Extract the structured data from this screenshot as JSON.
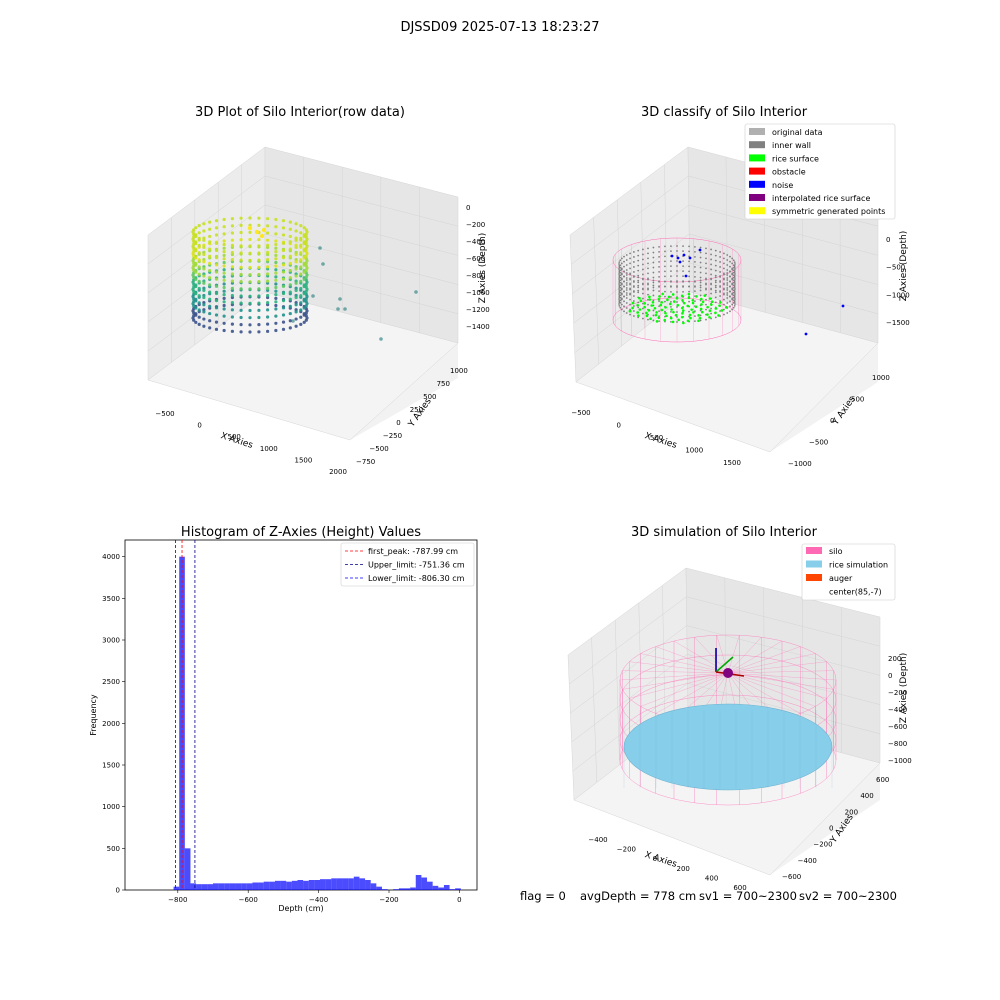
{
  "figure": {
    "suptitle": "DJSSD09 2025-07-13 18:23:27",
    "footer": {
      "flag": "flag = 0",
      "avg": "avgDepth = 778 cm",
      "sv1": "sv1 = 700~2300",
      "sv2": "sv2 = 700~2300"
    }
  },
  "chart_data": [
    {
      "type": "scatter",
      "title": "3D Plot of Silo Interior(row data)",
      "xlabel": "X Axies",
      "ylabel": "Y Axies",
      "zlabel": "Z Axies (Depth)",
      "xticks": [
        "−500",
        "0",
        "500",
        "1000",
        "1500",
        "2000"
      ],
      "yticks": [
        "−750",
        "−500",
        "−250",
        "0",
        "250",
        "500",
        "750",
        "1000"
      ],
      "zticks": [
        "0",
        "−200",
        "−400",
        "−600",
        "−800",
        "−1000",
        "−1200",
        "−1400"
      ],
      "colormap": "viridis"
    },
    {
      "type": "scatter",
      "title": "3D classify of Silo Interior",
      "xlabel": "X Axies",
      "ylabel": "Y Axies",
      "zlabel": "Z Axies (Depth)",
      "xticks": [
        "−500",
        "0",
        "500",
        "1000",
        "1500"
      ],
      "yticks": [
        "−1000",
        "−500",
        "0",
        "500",
        "1000"
      ],
      "zticks": [
        "0",
        "−500",
        "−1000",
        "−1500"
      ],
      "zticks_hidden": [
        "500"
      ],
      "legend": [
        {
          "label": "original data",
          "color": "#b0b0b0"
        },
        {
          "label": "inner wall",
          "color": "#808080"
        },
        {
          "label": "rice surface",
          "color": "#00ff00"
        },
        {
          "label": "obstacle",
          "color": "#ff0000"
        },
        {
          "label": "noise",
          "color": "#0000ff"
        },
        {
          "label": "interpolated rice surface",
          "color": "#800080"
        },
        {
          "label": "symmetric generated points",
          "color": "#ffff00"
        }
      ],
      "legend_loc": "upper right"
    },
    {
      "type": "bar",
      "title": "Histogram of Z-Axies (Height) Values",
      "xlabel": "Depth (cm)",
      "ylabel": "Frequency",
      "xlim": [
        -950,
        50
      ],
      "ylim": [
        0,
        4200
      ],
      "xticks": [
        "−800",
        "−600",
        "−400",
        "−200",
        "0"
      ],
      "xtick_values": [
        -800,
        -600,
        -400,
        -200,
        0
      ],
      "yticks": [
        "0",
        "500",
        "1000",
        "1500",
        "2000",
        "2500",
        "3000",
        "3500",
        "4000"
      ],
      "ytick_values": [
        0,
        500,
        1000,
        1500,
        2000,
        2500,
        3000,
        3500,
        4000
      ],
      "bin_width": 16,
      "bins": [
        {
          "x": -812,
          "v": 40
        },
        {
          "x": -796,
          "v": 4000
        },
        {
          "x": -780,
          "v": 500
        },
        {
          "x": -764,
          "v": 80
        },
        {
          "x": -748,
          "v": 70
        },
        {
          "x": -732,
          "v": 70
        },
        {
          "x": -716,
          "v": 70
        },
        {
          "x": -700,
          "v": 80
        },
        {
          "x": -684,
          "v": 80
        },
        {
          "x": -668,
          "v": 80
        },
        {
          "x": -652,
          "v": 80
        },
        {
          "x": -636,
          "v": 80
        },
        {
          "x": -620,
          "v": 80
        },
        {
          "x": -604,
          "v": 80
        },
        {
          "x": -588,
          "v": 90
        },
        {
          "x": -572,
          "v": 90
        },
        {
          "x": -556,
          "v": 100
        },
        {
          "x": -540,
          "v": 100
        },
        {
          "x": -524,
          "v": 110
        },
        {
          "x": -508,
          "v": 110
        },
        {
          "x": -492,
          "v": 100
        },
        {
          "x": -476,
          "v": 110
        },
        {
          "x": -460,
          "v": 120
        },
        {
          "x": -444,
          "v": 110
        },
        {
          "x": -428,
          "v": 120
        },
        {
          "x": -412,
          "v": 120
        },
        {
          "x": -396,
          "v": 130
        },
        {
          "x": -380,
          "v": 130
        },
        {
          "x": -364,
          "v": 140
        },
        {
          "x": -348,
          "v": 140
        },
        {
          "x": -332,
          "v": 140
        },
        {
          "x": -316,
          "v": 140
        },
        {
          "x": -300,
          "v": 160
        },
        {
          "x": -284,
          "v": 140
        },
        {
          "x": -268,
          "v": 120
        },
        {
          "x": -252,
          "v": 80
        },
        {
          "x": -236,
          "v": 40
        },
        {
          "x": -220,
          "v": 10
        },
        {
          "x": -188,
          "v": 10
        },
        {
          "x": -172,
          "v": 20
        },
        {
          "x": -156,
          "v": 20
        },
        {
          "x": -140,
          "v": 30
        },
        {
          "x": -124,
          "v": 180
        },
        {
          "x": -108,
          "v": 150
        },
        {
          "x": -92,
          "v": 100
        },
        {
          "x": -76,
          "v": 50
        },
        {
          "x": -60,
          "v": 30
        },
        {
          "x": -44,
          "v": 60
        },
        {
          "x": -28,
          "v": 10
        },
        {
          "x": -12,
          "v": 20
        }
      ],
      "bar_color": "#0000ff",
      "vlines": [
        {
          "x": -787.99,
          "label": "first_peak: -787.99 cm",
          "color": "#ff0000"
        },
        {
          "x": -751.36,
          "label": "Upper_limit: -751.36 cm",
          "color": "#00008b"
        },
        {
          "x": -806.3,
          "label": "Lower_limit: -806.30 cm",
          "color": "#0000ff"
        }
      ],
      "legend_loc": "upper right"
    },
    {
      "type": "scatter",
      "title": "3D simulation of Silo Interior",
      "xlabel": "X Axies",
      "ylabel": "Y Axies",
      "zlabel": "Z Axies (Depth)",
      "xticks": [
        "−400",
        "−200",
        "0",
        "200",
        "400",
        "600"
      ],
      "yticks": [
        "−600",
        "−400",
        "−200",
        "0",
        "200",
        "400",
        "600"
      ],
      "zticks": [
        "200",
        "0",
        "−200",
        "−400",
        "−600",
        "−800",
        "−1000"
      ],
      "legend": [
        {
          "label": "silo",
          "color": "#ff69b4"
        },
        {
          "label": "rice simulation",
          "color": "#87ceeb"
        },
        {
          "label": "auger",
          "color": "#ff4500"
        },
        {
          "label": "center(85,-7)",
          "color": "none"
        }
      ],
      "legend_loc": "upper right"
    }
  ]
}
